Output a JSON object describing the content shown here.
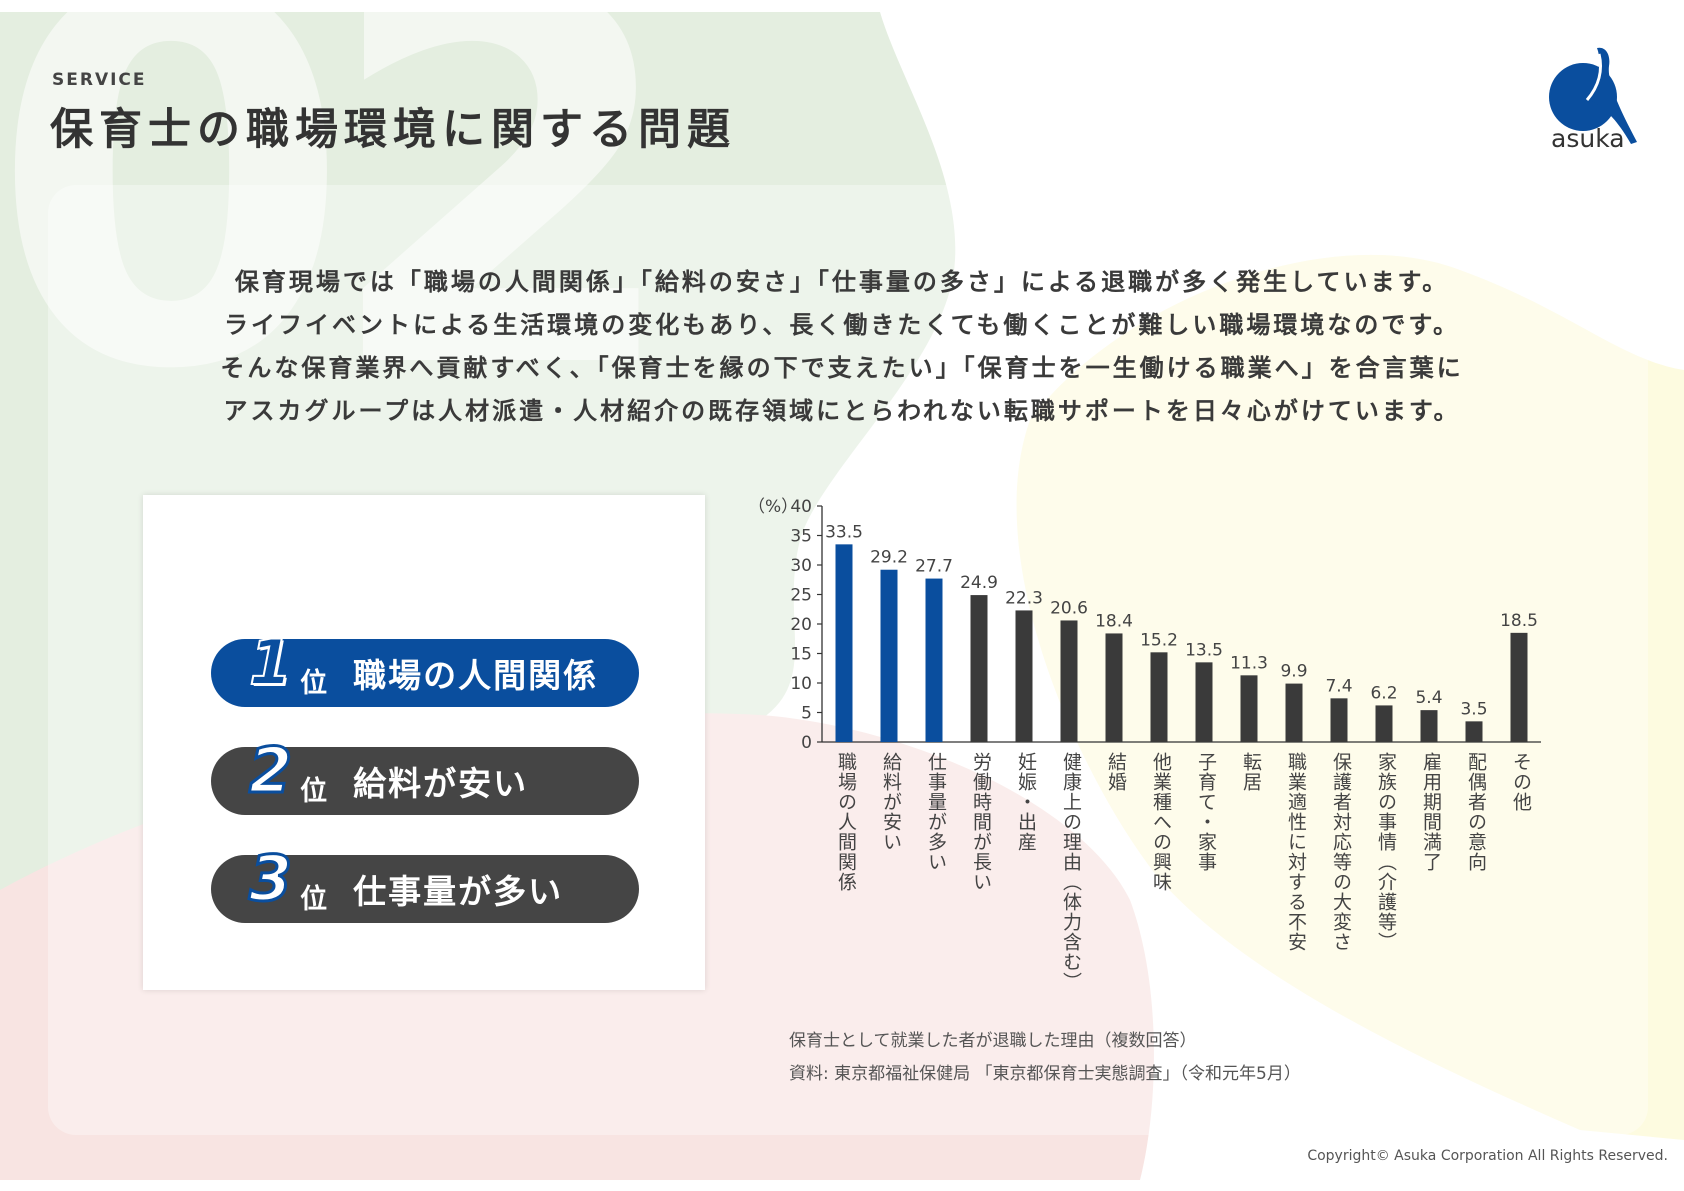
{
  "header": {
    "service_label": "SERVICE",
    "title": "保育士の職場環境に関する問題",
    "watermark": "02",
    "logo_text": "asuka"
  },
  "lead": {
    "lines": [
      "保育現場では「職場の人間関係」「給料の安さ」「仕事量の多さ」による退職が多く発生しています。",
      "ライフイベントによる生活環境の変化もあり、長く働きたくても働くことが難しい職場環境なのです。",
      "そんな保育業界へ貢献すべく、「保育士を縁の下で支えたい」「保育士を一生働ける職業へ」を合言葉に",
      "アスカグループは人材派遣・人材紹介の既存領域にとらわれない転職サポートを日々心がけています。"
    ]
  },
  "ranking": [
    {
      "num": "1",
      "suffix": "位",
      "label": "職場の人間関係"
    },
    {
      "num": "2",
      "suffix": "位",
      "label": "給料が安い"
    },
    {
      "num": "3",
      "suffix": "位",
      "label": "仕事量が多い"
    }
  ],
  "chart_data": {
    "type": "bar",
    "unit_label": "（%）",
    "ylim": [
      0,
      40
    ],
    "yticks": [
      0,
      5,
      10,
      15,
      20,
      25,
      30,
      35,
      40
    ],
    "categories": [
      "職場の人間関係",
      "給料が安い",
      "仕事量が多い",
      "労働時間が長い",
      "妊娠・出産",
      "健康上の理由（体力含む）",
      "結婚",
      "他業種への興味",
      "子育て・家事",
      "転居",
      "職業適性に対する不安",
      "保護者対応等の大変さ",
      "家族の事情（介護等）",
      "雇用期間満了",
      "配偶者の意向",
      "その他"
    ],
    "values": [
      33.5,
      29.2,
      27.7,
      24.9,
      22.3,
      20.6,
      18.4,
      15.2,
      13.5,
      11.3,
      9.9,
      7.4,
      6.2,
      5.4,
      3.5,
      18.5
    ],
    "value_labels": [
      "33.5",
      "29.2",
      "27.7",
      "24.9",
      "22.3",
      "20.6",
      "18.4",
      "15.2",
      "13.5",
      "11.3",
      "9.9",
      "7.4",
      "6.2",
      "5.4",
      "3.5",
      "18.5"
    ],
    "highlight_count": 3,
    "colors": {
      "highlight": "#0a4e9e",
      "normal": "#3a3a3a"
    },
    "grid": false
  },
  "source": {
    "caption": "保育士として就業した者が退職した理由（複数回答）",
    "citation": "資料: 東京都福祉保健局 「東京都保育士実態調査」（令和元年5月）"
  },
  "footer": {
    "copyright": "Copyright© Asuka Corporation All Rights Reserved."
  },
  "colors": {
    "green_bg": "#e4eee0",
    "pink_bg": "#f8e4e2",
    "yellow_bg": "#fdfbe0",
    "brand_blue": "#0a4e9e"
  }
}
